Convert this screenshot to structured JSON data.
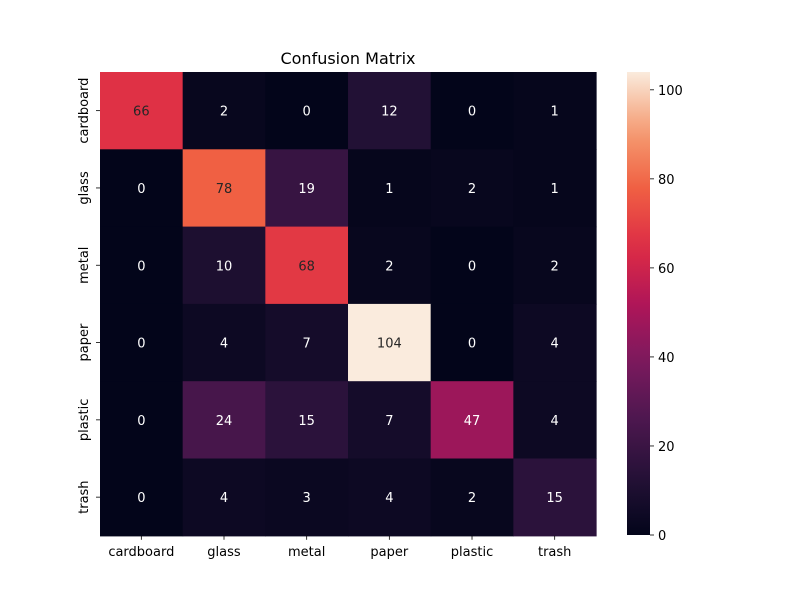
{
  "chart_data": {
    "type": "heatmap",
    "title": "Confusion Matrix",
    "xlabel": "",
    "ylabel": "",
    "x_categories": [
      "cardboard",
      "glass",
      "metal",
      "paper",
      "plastic",
      "trash"
    ],
    "y_categories": [
      "cardboard",
      "glass",
      "metal",
      "paper",
      "plastic",
      "trash"
    ],
    "values": [
      [
        66,
        2,
        0,
        12,
        0,
        1
      ],
      [
        0,
        78,
        19,
        1,
        2,
        1
      ],
      [
        0,
        10,
        68,
        2,
        0,
        2
      ],
      [
        0,
        4,
        7,
        104,
        0,
        4
      ],
      [
        0,
        24,
        15,
        7,
        47,
        4
      ],
      [
        0,
        4,
        3,
        4,
        2,
        15
      ]
    ],
    "vmin": 0,
    "vmax": 104,
    "colormap": "rocket",
    "annotations": true,
    "colorbar": {
      "ticks": [
        0,
        20,
        40,
        60,
        80,
        100
      ]
    }
  }
}
